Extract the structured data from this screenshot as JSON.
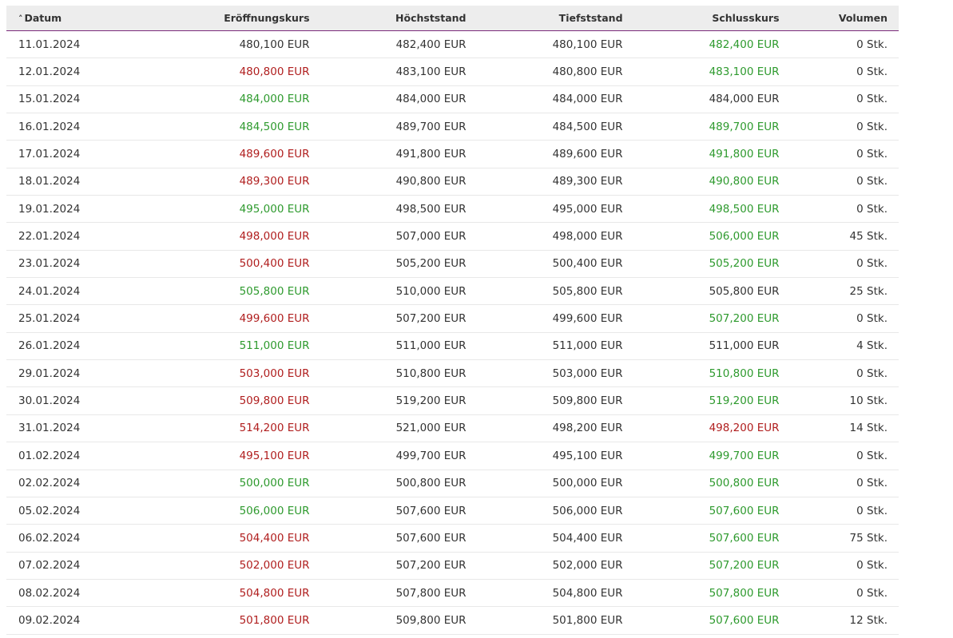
{
  "table": {
    "header": [
      "Datum",
      "Eröffnungskurs",
      "Höchststand",
      "Tiefststand",
      "Schlusskurs",
      "Volumen"
    ],
    "tone_colors": {
      "n": "#333333",
      "g": "#2e9a2e",
      "r": "#b01e1e"
    },
    "rows": [
      {
        "cells": [
          "11.01.2024",
          "480,100 EUR",
          "482,400 EUR",
          "480,100 EUR",
          "482,400 EUR",
          "0 Stk."
        ],
        "tones": [
          "n",
          "n",
          "n",
          "n",
          "g",
          "n"
        ]
      },
      {
        "cells": [
          "12.01.2024",
          "480,800 EUR",
          "483,100 EUR",
          "480,800 EUR",
          "483,100 EUR",
          "0 Stk."
        ],
        "tones": [
          "n",
          "r",
          "n",
          "n",
          "g",
          "n"
        ]
      },
      {
        "cells": [
          "15.01.2024",
          "484,000 EUR",
          "484,000 EUR",
          "484,000 EUR",
          "484,000 EUR",
          "0 Stk."
        ],
        "tones": [
          "n",
          "g",
          "n",
          "n",
          "n",
          "n"
        ]
      },
      {
        "cells": [
          "16.01.2024",
          "484,500 EUR",
          "489,700 EUR",
          "484,500 EUR",
          "489,700 EUR",
          "0 Stk."
        ],
        "tones": [
          "n",
          "g",
          "n",
          "n",
          "g",
          "n"
        ]
      },
      {
        "cells": [
          "17.01.2024",
          "489,600 EUR",
          "491,800 EUR",
          "489,600 EUR",
          "491,800 EUR",
          "0 Stk."
        ],
        "tones": [
          "n",
          "r",
          "n",
          "n",
          "g",
          "n"
        ]
      },
      {
        "cells": [
          "18.01.2024",
          "489,300 EUR",
          "490,800 EUR",
          "489,300 EUR",
          "490,800 EUR",
          "0 Stk."
        ],
        "tones": [
          "n",
          "r",
          "n",
          "n",
          "g",
          "n"
        ]
      },
      {
        "cells": [
          "19.01.2024",
          "495,000 EUR",
          "498,500 EUR",
          "495,000 EUR",
          "498,500 EUR",
          "0 Stk."
        ],
        "tones": [
          "n",
          "g",
          "n",
          "n",
          "g",
          "n"
        ]
      },
      {
        "cells": [
          "22.01.2024",
          "498,000 EUR",
          "507,000 EUR",
          "498,000 EUR",
          "506,000 EUR",
          "45 Stk."
        ],
        "tones": [
          "n",
          "r",
          "n",
          "n",
          "g",
          "n"
        ]
      },
      {
        "cells": [
          "23.01.2024",
          "500,400 EUR",
          "505,200 EUR",
          "500,400 EUR",
          "505,200 EUR",
          "0 Stk."
        ],
        "tones": [
          "n",
          "r",
          "n",
          "n",
          "g",
          "n"
        ]
      },
      {
        "cells": [
          "24.01.2024",
          "505,800 EUR",
          "510,000 EUR",
          "505,800 EUR",
          "505,800 EUR",
          "25 Stk."
        ],
        "tones": [
          "n",
          "g",
          "n",
          "n",
          "n",
          "n"
        ]
      },
      {
        "cells": [
          "25.01.2024",
          "499,600 EUR",
          "507,200 EUR",
          "499,600 EUR",
          "507,200 EUR",
          "0 Stk."
        ],
        "tones": [
          "n",
          "r",
          "n",
          "n",
          "g",
          "n"
        ]
      },
      {
        "cells": [
          "26.01.2024",
          "511,000 EUR",
          "511,000 EUR",
          "511,000 EUR",
          "511,000 EUR",
          "4 Stk."
        ],
        "tones": [
          "n",
          "g",
          "n",
          "n",
          "n",
          "n"
        ]
      },
      {
        "cells": [
          "29.01.2024",
          "503,000 EUR",
          "510,800 EUR",
          "503,000 EUR",
          "510,800 EUR",
          "0 Stk."
        ],
        "tones": [
          "n",
          "r",
          "n",
          "n",
          "g",
          "n"
        ]
      },
      {
        "cells": [
          "30.01.2024",
          "509,800 EUR",
          "519,200 EUR",
          "509,800 EUR",
          "519,200 EUR",
          "10 Stk."
        ],
        "tones": [
          "n",
          "r",
          "n",
          "n",
          "g",
          "n"
        ]
      },
      {
        "cells": [
          "31.01.2024",
          "514,200 EUR",
          "521,000 EUR",
          "498,200 EUR",
          "498,200 EUR",
          "14 Stk."
        ],
        "tones": [
          "n",
          "r",
          "n",
          "n",
          "r",
          "n"
        ]
      },
      {
        "cells": [
          "01.02.2024",
          "495,100 EUR",
          "499,700 EUR",
          "495,100 EUR",
          "499,700 EUR",
          "0 Stk."
        ],
        "tones": [
          "n",
          "r",
          "n",
          "n",
          "g",
          "n"
        ]
      },
      {
        "cells": [
          "02.02.2024",
          "500,000 EUR",
          "500,800 EUR",
          "500,000 EUR",
          "500,800 EUR",
          "0 Stk."
        ],
        "tones": [
          "n",
          "g",
          "n",
          "n",
          "g",
          "n"
        ]
      },
      {
        "cells": [
          "05.02.2024",
          "506,000 EUR",
          "507,600 EUR",
          "506,000 EUR",
          "507,600 EUR",
          "0 Stk."
        ],
        "tones": [
          "n",
          "g",
          "n",
          "n",
          "g",
          "n"
        ]
      },
      {
        "cells": [
          "06.02.2024",
          "504,400 EUR",
          "507,600 EUR",
          "504,400 EUR",
          "507,600 EUR",
          "75 Stk."
        ],
        "tones": [
          "n",
          "r",
          "n",
          "n",
          "g",
          "n"
        ]
      },
      {
        "cells": [
          "07.02.2024",
          "502,000 EUR",
          "507,200 EUR",
          "502,000 EUR",
          "507,200 EUR",
          "0 Stk."
        ],
        "tones": [
          "n",
          "r",
          "n",
          "n",
          "g",
          "n"
        ]
      },
      {
        "cells": [
          "08.02.2024",
          "504,800 EUR",
          "507,800 EUR",
          "504,800 EUR",
          "507,800 EUR",
          "0 Stk."
        ],
        "tones": [
          "n",
          "r",
          "n",
          "n",
          "g",
          "n"
        ]
      },
      {
        "cells": [
          "09.02.2024",
          "501,800 EUR",
          "509,800 EUR",
          "501,800 EUR",
          "507,600 EUR",
          "12 Stk."
        ],
        "tones": [
          "n",
          "r",
          "n",
          "n",
          "g",
          "n"
        ]
      }
    ]
  }
}
